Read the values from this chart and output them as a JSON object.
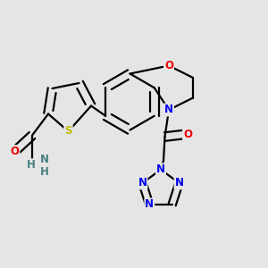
{
  "bg_color": "#e5e5e5",
  "bond_color": "#000000",
  "bond_width": 1.6,
  "atom_colors": {
    "N": "#0000ee",
    "O": "#ee0000",
    "S": "#bbbb00",
    "H": "#4a8080"
  },
  "font_size": 8.5
}
